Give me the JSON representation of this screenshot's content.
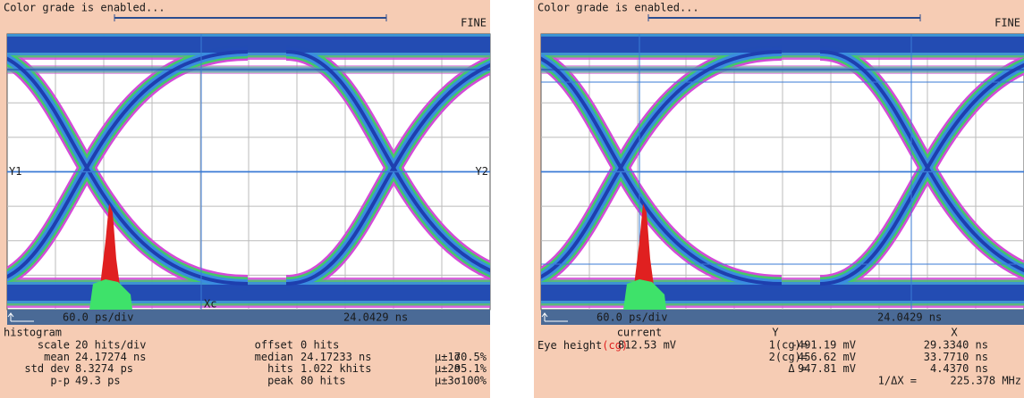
{
  "panels": [
    {
      "status": "Color grade is enabled...",
      "mode": "FINE",
      "cursor_labels": [
        "Y1",
        "Y2",
        "Xc"
      ],
      "scale": "60.0 ps/div",
      "position": "24.0429 ns",
      "readout": {
        "title": "histogram",
        "rows": [
          [
            "scale",
            "20 hits/div",
            "offset",
            "0 hits"
          ],
          [
            "mean",
            "24.17274 ns",
            "median",
            "24.17233 ns",
            "μ±1σ",
            "70.5%"
          ],
          [
            "std dev",
            "8.3274 ps",
            "hits",
            "1.022 khits",
            "μ±2σ",
            "95.1%"
          ],
          [
            "p-p",
            "49.3 ps",
            "peak",
            "80 hits",
            "μ±3σ",
            "100%"
          ]
        ]
      }
    },
    {
      "status": "Color grade is enabled...",
      "mode": "FINE",
      "scale": "60.0 ps/div",
      "position": "24.0429 ns",
      "readout": {
        "header": [
          "current",
          "Y",
          "X"
        ],
        "eye_label": "Eye height",
        "eye_suffix": "(cg)",
        "eye_value": "812.53 mV",
        "cursors": [
          [
            "1(cg)=",
            "-491.19 mV",
            "29.3340 ns"
          ],
          [
            "2(cg)=",
            "456.62 mV",
            "33.7710 ns"
          ],
          [
            "Δ =",
            "947.81 mV",
            "4.4370 ns"
          ]
        ],
        "freq_label": "1/ΔX =",
        "freq_value": "225.378 MHz"
      }
    }
  ]
}
